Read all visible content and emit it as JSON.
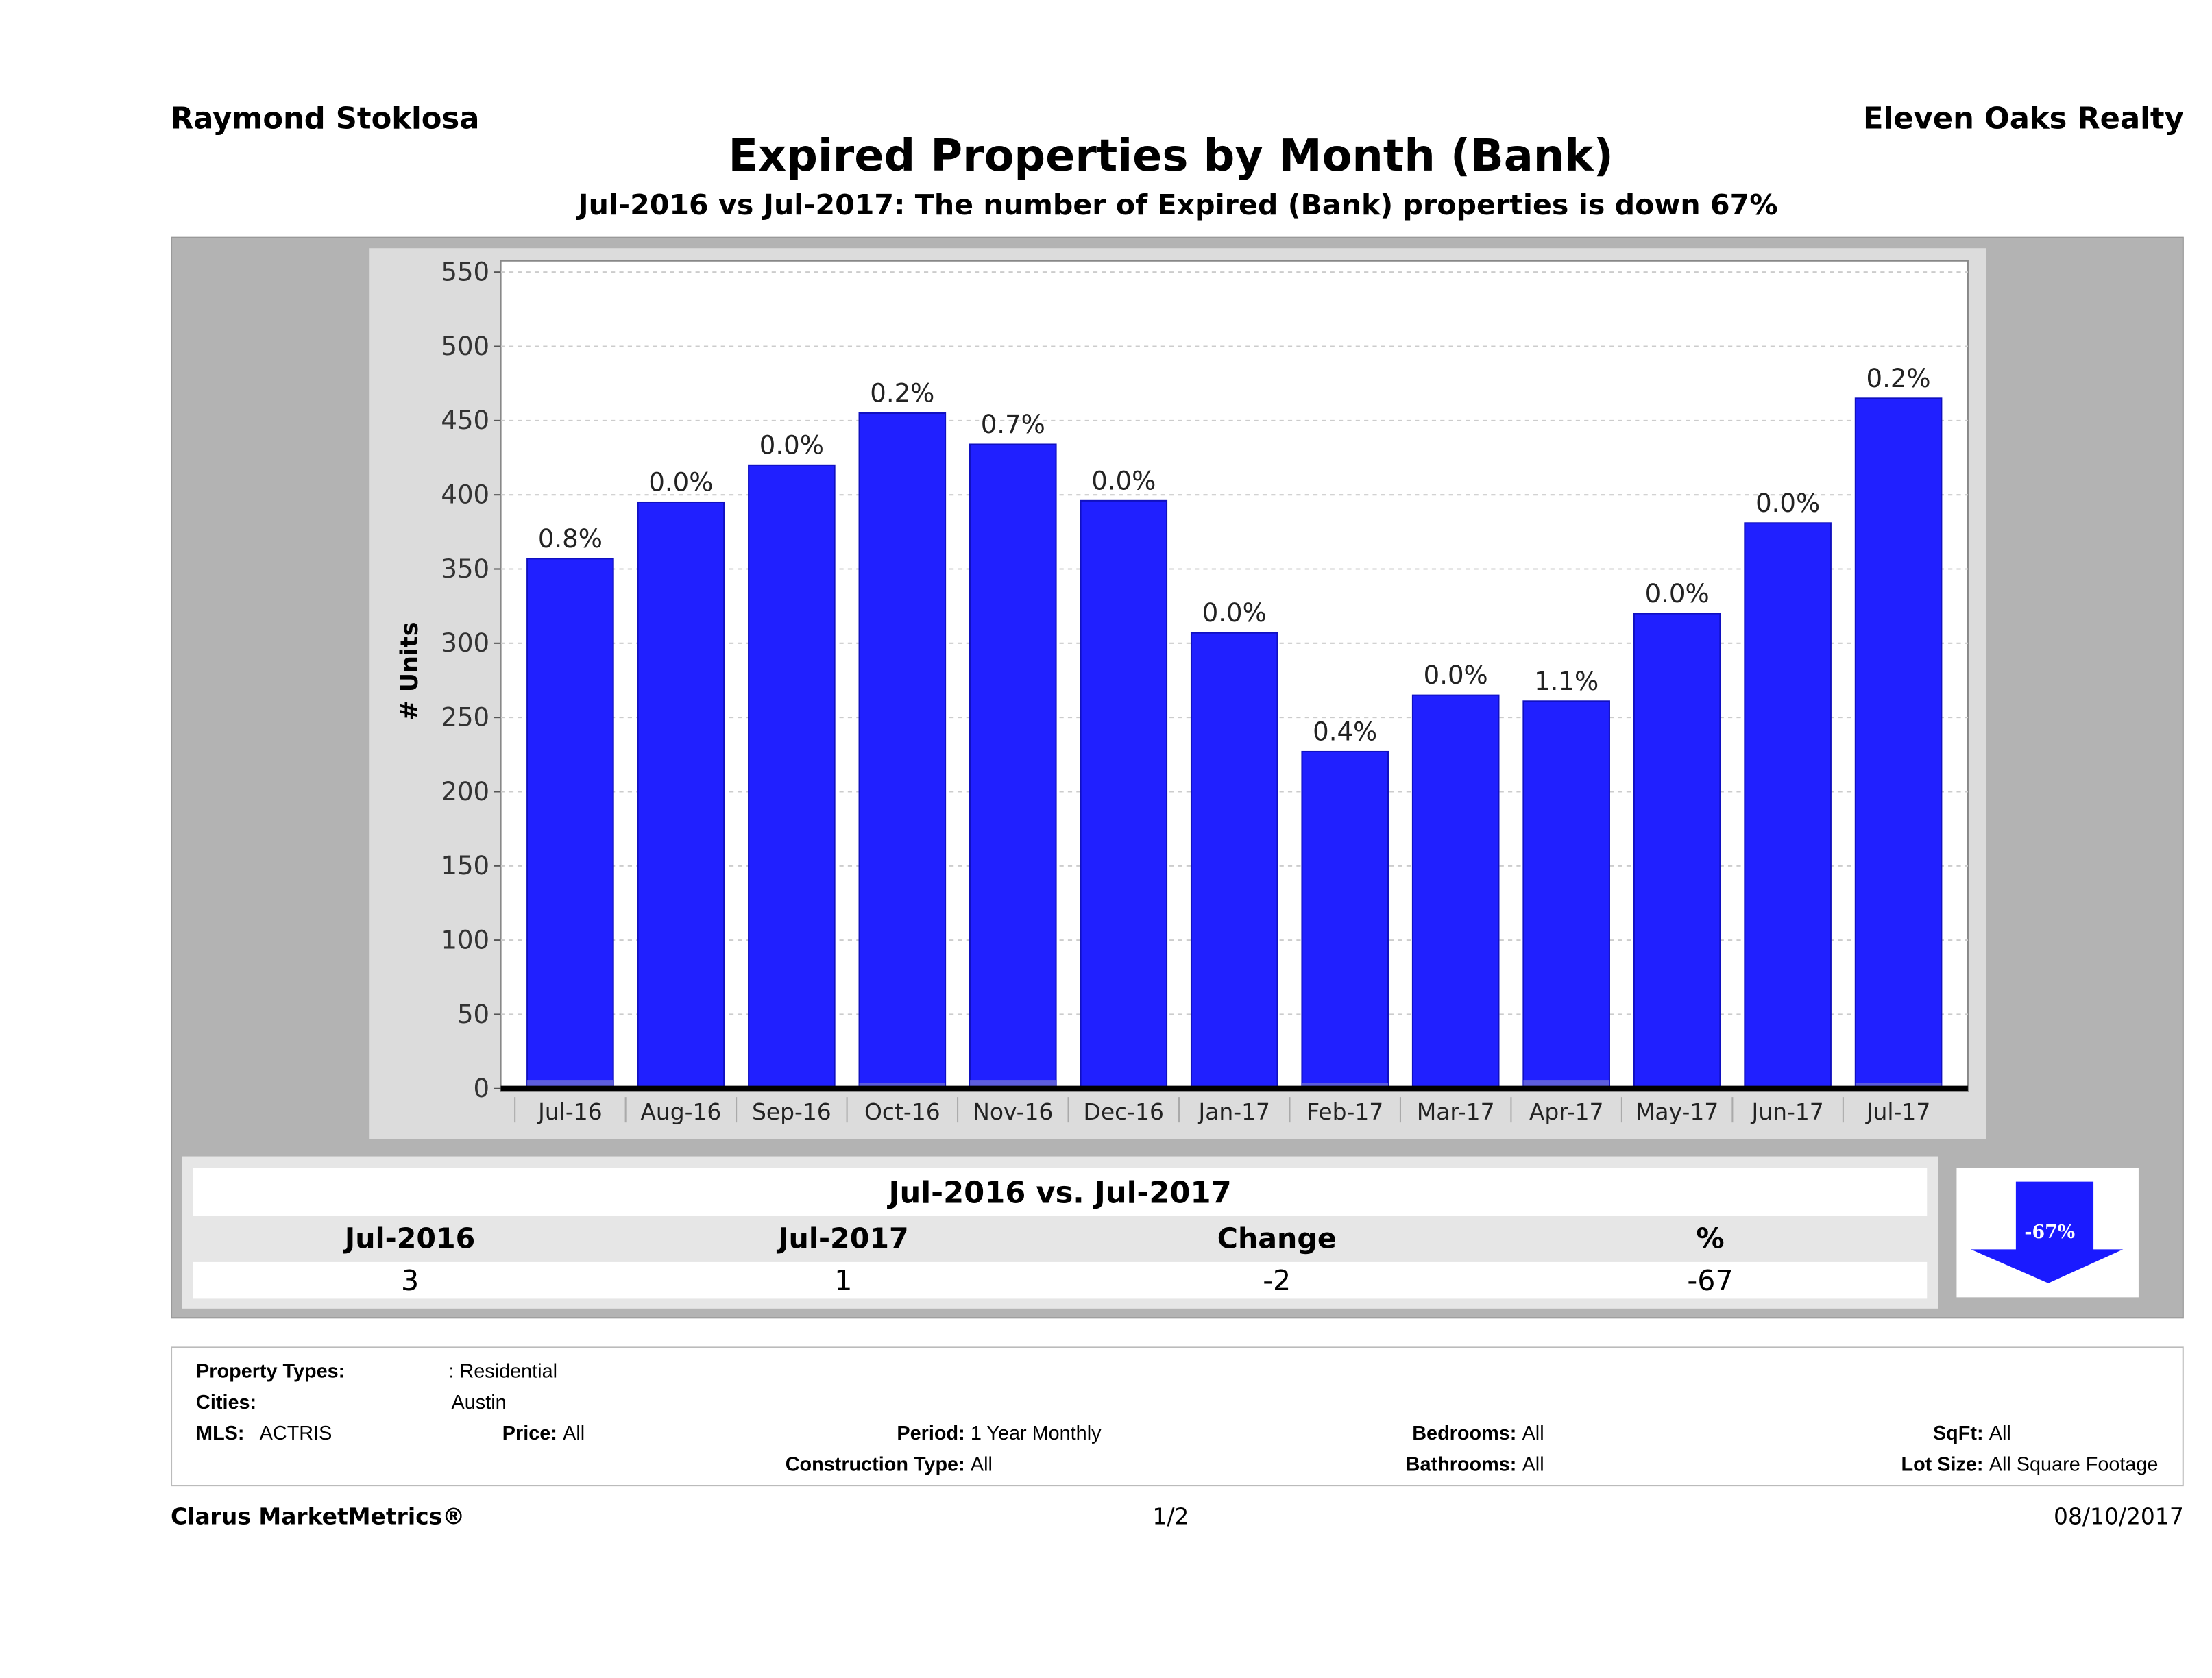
{
  "header": {
    "agent": "Raymond Stoklosa",
    "company": "Eleven Oaks Realty"
  },
  "title": "Expired Properties by Month (Bank)",
  "subtitle": "Jul-2016 vs Jul-2017: The number of Expired (Bank)  properties is down 67%",
  "chart_data": {
    "type": "bar",
    "ylabel": "# Units",
    "ylim": [
      0,
      550
    ],
    "yticks": [
      0,
      50,
      100,
      150,
      200,
      250,
      300,
      350,
      400,
      450,
      500,
      550
    ],
    "grid": true,
    "categories": [
      "Jul-16",
      "Aug-16",
      "Sep-16",
      "Oct-16",
      "Nov-16",
      "Dec-16",
      "Jan-17",
      "Feb-17",
      "Mar-17",
      "Apr-17",
      "May-17",
      "Jun-17",
      "Jul-17"
    ],
    "series": [
      {
        "values": [
          357,
          395,
          420,
          455,
          434,
          396,
          307,
          227,
          265,
          261,
          320,
          381,
          465
        ],
        "color": "#2020ff"
      },
      {
        "values": [
          3,
          0,
          0,
          1,
          3,
          0,
          0,
          1,
          0,
          3,
          0,
          0,
          1
        ],
        "color": "#6a6ad8"
      }
    ],
    "data_labels": [
      "0.8%",
      "0.0%",
      "0.0%",
      "0.2%",
      "0.7%",
      "0.0%",
      "0.0%",
      "0.4%",
      "0.0%",
      "1.1%",
      "0.0%",
      "0.0%",
      "0.2%"
    ]
  },
  "summary": {
    "heading": "Jul-2016 vs. Jul-2017",
    "columns": [
      "Jul-2016",
      "Jul-2017",
      "Change",
      "%"
    ],
    "values": [
      "3",
      "1",
      "-2",
      "-67"
    ],
    "arrow_label": "-67%",
    "arrow_color": "#1a1aff"
  },
  "footer": {
    "property_types_label": "Property Types:",
    "property_types": ": Residential",
    "cities_label": "Cities:",
    "cities": "Austin",
    "mls_label": "MLS:",
    "mls": "ACTRIS",
    "price_label": "Price:",
    "price": "All",
    "period_label": "Period:",
    "period": "1 Year Monthly",
    "construction_label": "Construction Type:",
    "construction": "All",
    "bedrooms_label": "Bedrooms:",
    "bedrooms": "All",
    "bathrooms_label": "Bathrooms:",
    "bathrooms": "All",
    "sqft_label": "SqFt:",
    "sqft": "All",
    "lot_label": "Lot Size:",
    "lot": "All Square Footage"
  },
  "bottom": {
    "brand": "Clarus MarketMetrics®",
    "page": "1/2",
    "date": "08/10/2017"
  }
}
